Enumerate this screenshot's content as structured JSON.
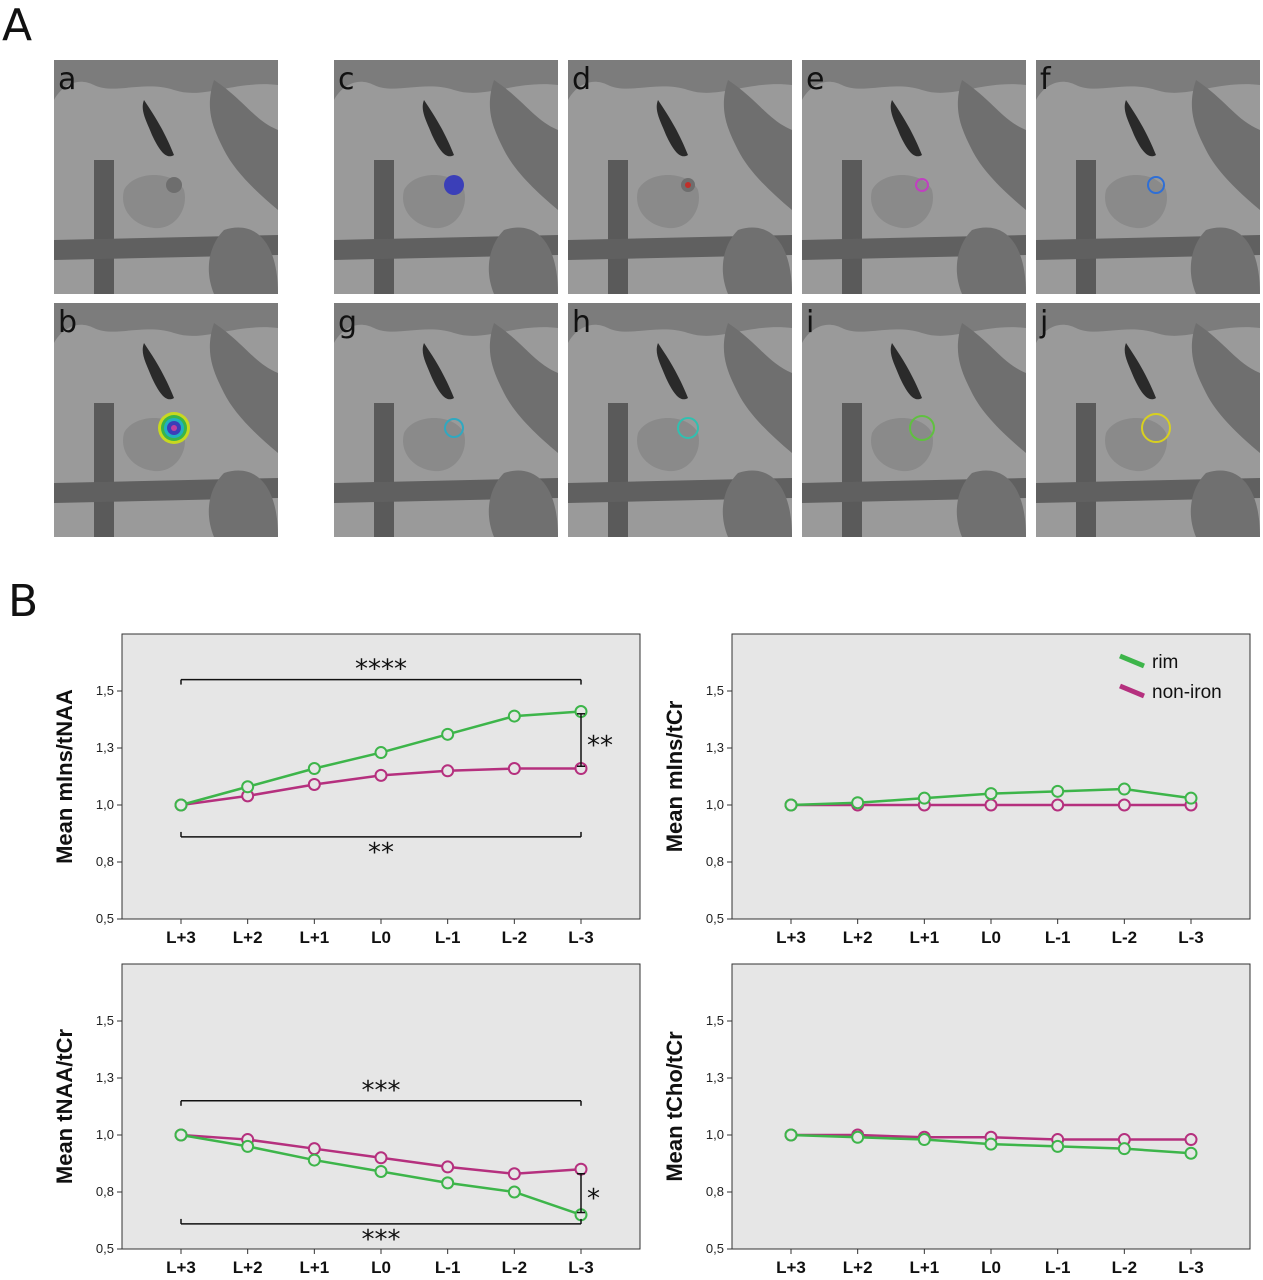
{
  "figure": {
    "panel_a_letter": "A",
    "panel_b_letter": "B"
  },
  "mri_panels": [
    {
      "label": "a",
      "overlay": "none"
    },
    {
      "label": "c",
      "overlay": "filled-blue"
    },
    {
      "label": "d",
      "overlay": "red-dot"
    },
    {
      "label": "e",
      "overlay": "magenta-ring"
    },
    {
      "label": "f",
      "overlay": "blue-ring"
    },
    {
      "label": "b",
      "overlay": "heatmap"
    },
    {
      "label": "g",
      "overlay": "cyan-ring-small"
    },
    {
      "label": "h",
      "overlay": "cyan-ring"
    },
    {
      "label": "i",
      "overlay": "green-ring"
    },
    {
      "label": "j",
      "overlay": "yellow-ring"
    }
  ],
  "colors": {
    "rim": "#3db54a",
    "non_iron": "#b5307e",
    "plot_bg": "#e6e6e6"
  },
  "legend": {
    "items": [
      {
        "label": "rim",
        "color": "#3db54a"
      },
      {
        "label": "non-iron",
        "color": "#b5307e"
      }
    ]
  },
  "chart_data": [
    {
      "type": "line",
      "ylabel": "Mean mIns/tNAA",
      "categories": [
        "L+3",
        "L+2",
        "L+1",
        "L0",
        "L-1",
        "L-2",
        "L-3"
      ],
      "yticks": [
        "0,5",
        "0,8",
        "1,0",
        "1,3",
        "1,5"
      ],
      "ylim": [
        0.5,
        1.75
      ],
      "series": [
        {
          "name": "rim",
          "values": [
            1.0,
            1.08,
            1.16,
            1.23,
            1.31,
            1.39,
            1.41
          ]
        },
        {
          "name": "non-iron",
          "values": [
            1.0,
            1.04,
            1.09,
            1.13,
            1.15,
            1.16,
            1.16
          ]
        }
      ],
      "annotations": [
        {
          "text": "****",
          "from": "L+3",
          "to": "L-3",
          "y": 1.55,
          "ticks": "down"
        },
        {
          "text": "**",
          "from": "L+3",
          "to": "L-3",
          "y": 0.86,
          "ticks": "up"
        },
        {
          "text": "**",
          "at": "L-3",
          "y_from": 1.17,
          "y_to": 1.4
        }
      ]
    },
    {
      "type": "line",
      "ylabel": "Mean mIns/tCr",
      "categories": [
        "L+3",
        "L+2",
        "L+1",
        "L0",
        "L-1",
        "L-2",
        "L-3"
      ],
      "yticks": [
        "0,5",
        "0,8",
        "1,0",
        "1,3",
        "1,5"
      ],
      "ylim": [
        0.5,
        1.75
      ],
      "series": [
        {
          "name": "rim",
          "values": [
            1.0,
            1.01,
            1.03,
            1.05,
            1.06,
            1.07,
            1.03
          ]
        },
        {
          "name": "non-iron",
          "values": [
            1.0,
            1.0,
            1.0,
            1.0,
            1.0,
            1.0,
            1.0
          ]
        }
      ],
      "annotations": []
    },
    {
      "type": "line",
      "ylabel": "Mean tNAA/tCr",
      "categories": [
        "L+3",
        "L+2",
        "L+1",
        "L0",
        "L-1",
        "L-2",
        "L-3"
      ],
      "yticks": [
        "0,5",
        "0,8",
        "1,0",
        "1,3",
        "1,5"
      ],
      "ylim": [
        0.5,
        1.75
      ],
      "series": [
        {
          "name": "rim",
          "values": [
            1.0,
            0.95,
            0.89,
            0.84,
            0.79,
            0.75,
            0.65
          ]
        },
        {
          "name": "non-iron",
          "values": [
            1.0,
            0.98,
            0.94,
            0.9,
            0.86,
            0.83,
            0.85
          ]
        }
      ],
      "annotations": [
        {
          "text": "***",
          "from": "L+3",
          "to": "L-3",
          "y": 1.15,
          "ticks": "down"
        },
        {
          "text": "***",
          "from": "L+3",
          "to": "L-3",
          "y": 0.61,
          "ticks": "up"
        },
        {
          "text": "*",
          "at": "L-3",
          "y_from": 0.66,
          "y_to": 0.83
        }
      ]
    },
    {
      "type": "line",
      "ylabel": "Mean tCho/tCr",
      "categories": [
        "L+3",
        "L+2",
        "L+1",
        "L0",
        "L-1",
        "L-2",
        "L-3"
      ],
      "yticks": [
        "0,5",
        "0,8",
        "1,0",
        "1,3",
        "1,5"
      ],
      "ylim": [
        0.5,
        1.75
      ],
      "series": [
        {
          "name": "rim",
          "values": [
            1.0,
            0.99,
            0.98,
            0.96,
            0.95,
            0.94,
            0.92
          ]
        },
        {
          "name": "non-iron",
          "values": [
            1.0,
            1.0,
            0.99,
            0.99,
            0.98,
            0.98,
            0.98
          ]
        }
      ],
      "annotations": []
    }
  ]
}
